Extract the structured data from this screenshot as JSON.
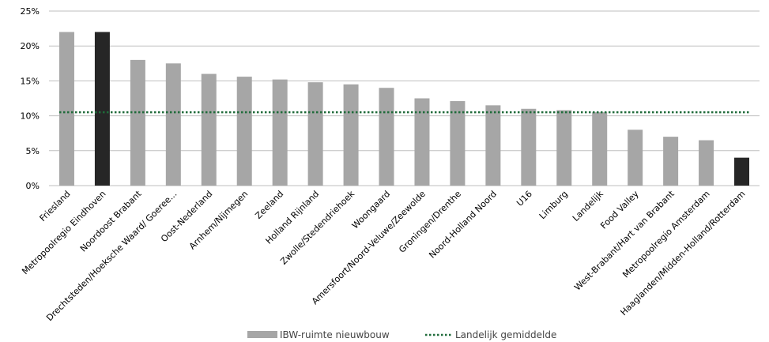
{
  "chart_data": {
    "type": "bar",
    "categories": [
      "Friesland",
      "Metropoolregio Eindhoven",
      "Noordoost Brabant",
      "Drechtsteden/Hoeksche Waard/ Goeree...",
      "Oost-Nederland",
      "Arnhem/Nijmegen",
      "Zeeland",
      "Holland Rijnland",
      "Zwolle/Stedendriehoek",
      "Woongaard",
      "Amersfoort/Noord-Veluwe/Zeewolde",
      "Groningen/Drenthe",
      "Noord-Holland Noord",
      "U16",
      "Limburg",
      "Landelijk",
      "Food Valley",
      "West-Brabant/Hart van Brabant",
      "Metropoolregio Amsterdam",
      "Haaglanden/Midden-Holland/Rotterdam"
    ],
    "series": [
      {
        "name": "IBW-ruimte nieuwbouw",
        "values": [
          22.0,
          22.0,
          18.0,
          17.5,
          16.0,
          15.6,
          15.2,
          14.8,
          14.5,
          14.0,
          12.5,
          12.1,
          11.5,
          11.0,
          10.8,
          10.5,
          8.0,
          7.0,
          6.5,
          4.0
        ]
      },
      {
        "name": "Landelijk gemiddelde",
        "type": "line",
        "value": 10.5
      }
    ],
    "highlighted_categories": [
      "Metropoolregio Eindhoven",
      "Haaglanden/Midden-Holland/Rotterdam"
    ],
    "y_ticks": [
      "0%",
      "5%",
      "10%",
      "15%",
      "20%",
      "25%"
    ],
    "ylim": [
      0,
      25
    ],
    "grid": true,
    "legend_position": "bottom",
    "colors": {
      "bar": "#a6a6a6",
      "highlight": "#262626",
      "average_line": "#1f6b3a",
      "grid": "#bfbfbf"
    }
  }
}
